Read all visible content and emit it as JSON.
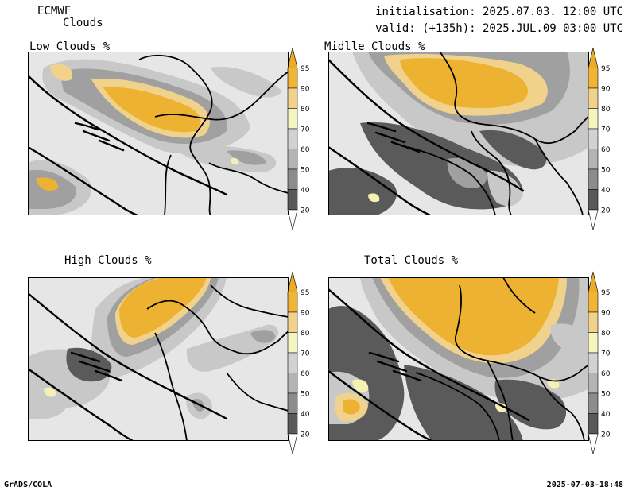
{
  "header": {
    "model": "ECMWF",
    "product": "Clouds",
    "init_line": "initialisation: 2025.07.03. 12:00 UTC",
    "valid_line": "valid: (+135h): 2025.JUL.09 03:00 UTC"
  },
  "panels": [
    {
      "title": "Low Clouds %"
    },
    {
      "title": "Midlle Clouds %"
    },
    {
      "title": "High Clouds %"
    },
    {
      "title": "Total Clouds %"
    }
  ],
  "colorbar": {
    "levels": [
      "20",
      "40",
      "50",
      "60",
      "70",
      "80",
      "90",
      "95"
    ],
    "colors": [
      "#ffffff",
      "#5a5a5a",
      "#8c8c8c",
      "#b4b4b4",
      "#d2d2d2",
      "#f5f5c0",
      "#f0d28c",
      "#f0b437",
      "#ebaa28"
    ]
  },
  "colors": {
    "background_low": "#e6e6e6",
    "cloud_light": "#c8c8c8",
    "cloud_mid": "#a0a0a0",
    "cloud_dark": "#5a5a5a",
    "cloud_pale": "#f5f0b4",
    "cloud_tan": "#f0d28c",
    "cloud_orange": "#eeb232",
    "border": "#000000"
  },
  "footer": {
    "left": "GrADS/COLA",
    "right": "2025-07-03-18:48"
  }
}
